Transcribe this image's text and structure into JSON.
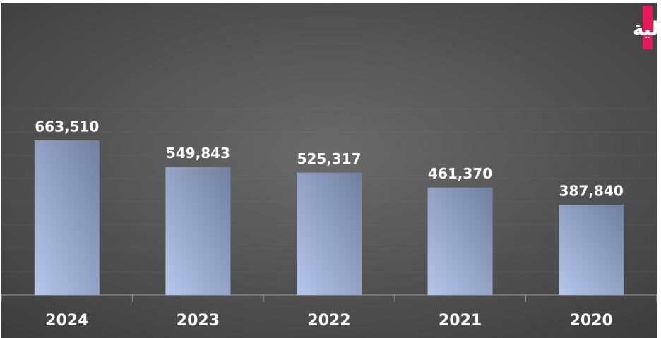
{
  "chart_data": {
    "type": "bar",
    "title": "قيمة إصدارات الصكوك وأدوات الدين المدرجة في السوق المالية",
    "categories": [
      "2024",
      "2023",
      "2022",
      "2021",
      "2020"
    ],
    "values": [
      663510,
      549843,
      525317,
      461370,
      387840
    ],
    "value_labels": [
      "663,510",
      "549,843",
      "525,317",
      "461,370",
      "387,840"
    ],
    "ylim": [
      0,
      800000
    ],
    "yticks": [
      0,
      100000,
      200000,
      300000,
      400000,
      500000,
      600000,
      700000,
      800000
    ],
    "grid": true
  }
}
